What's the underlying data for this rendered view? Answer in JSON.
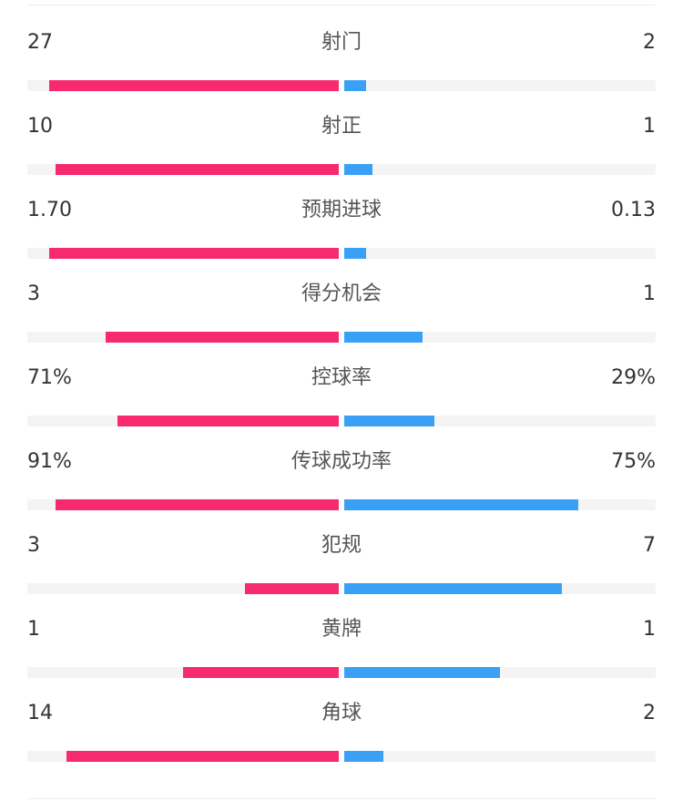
{
  "colors": {
    "home": "#f72a6e",
    "away": "#3aa0f5",
    "track": "#f4f4f4"
  },
  "stats": [
    {
      "label": "射门",
      "home": "27",
      "away": "2",
      "home_fill": 0.931,
      "away_fill": 0.069
    },
    {
      "label": "射正",
      "home": "10",
      "away": "1",
      "home_fill": 0.909,
      "away_fill": 0.091
    },
    {
      "label": "预期进球",
      "home": "1.70",
      "away": "0.13",
      "home_fill": 0.929,
      "away_fill": 0.071
    },
    {
      "label": "得分机会",
      "home": "3",
      "away": "1",
      "home_fill": 0.75,
      "away_fill": 0.25
    },
    {
      "label": "控球率",
      "home": "71%",
      "away": "29%",
      "home_fill": 0.71,
      "away_fill": 0.29
    },
    {
      "label": "传球成功率",
      "home": "91%",
      "away": "75%",
      "home_fill": 0.91,
      "away_fill": 0.75
    },
    {
      "label": "犯规",
      "home": "3",
      "away": "7",
      "home_fill": 0.3,
      "away_fill": 0.7
    },
    {
      "label": "黄牌",
      "home": "1",
      "away": "1",
      "home_fill": 0.5,
      "away_fill": 0.5
    },
    {
      "label": "角球",
      "home": "14",
      "away": "2",
      "home_fill": 0.875,
      "away_fill": 0.125
    }
  ]
}
